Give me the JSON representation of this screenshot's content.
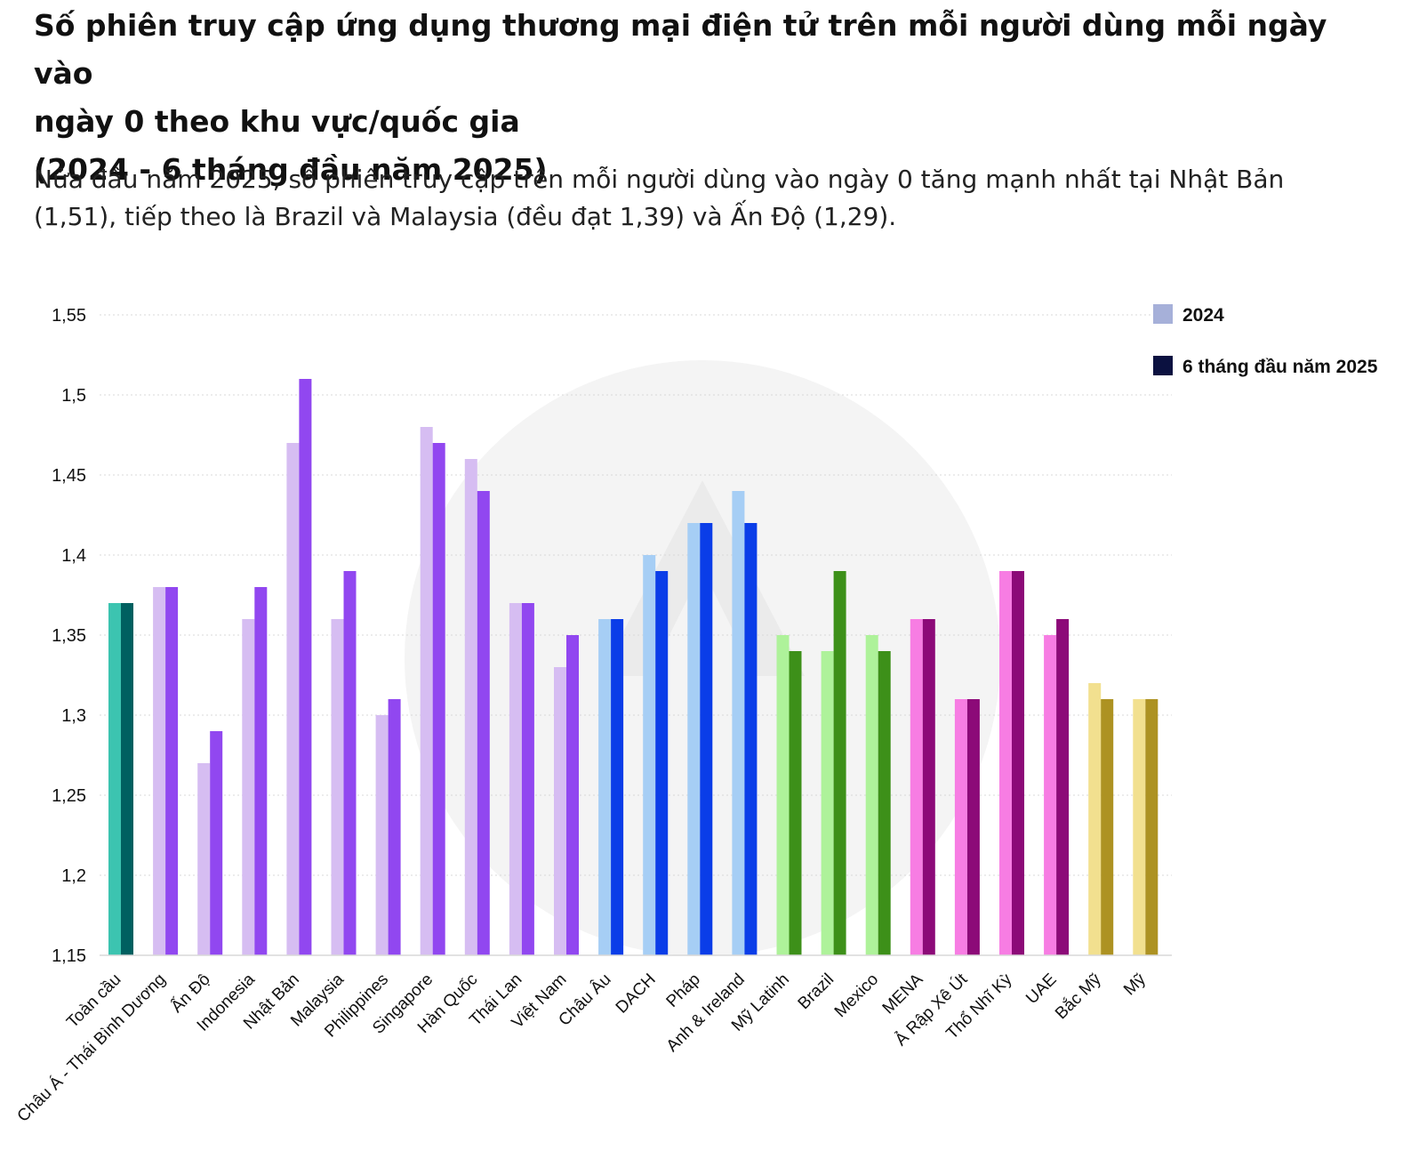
{
  "title_lines": [
    "Số phiên truy cập ứng dụng thương mại điện tử trên mỗi người dùng mỗi ngày vào",
    "ngày 0 theo khu vực/quốc gia",
    "(2024 - 6 tháng đầu năm 2025)"
  ],
  "subtitle_lines": [
    "Nửa đầu năm 2025, số phiên truy cập trên mỗi người dùng vào ngày 0 tăng mạnh nhất tại Nhật Bản",
    "(1,51), tiếp theo là Brazil và Malaysia (đều đạt 1,39) và Ấn Độ (1,29)."
  ],
  "legend": {
    "items": [
      {
        "label": "2024",
        "color": "#a6b0d9"
      },
      {
        "label": "6 tháng đầu năm 2025",
        "color": "#0b1140"
      }
    ]
  },
  "chart_data": {
    "type": "bar",
    "title": "Số phiên truy cập ứng dụng thương mại điện tử trên mỗi người dùng mỗi ngày vào ngày 0 theo khu vực/quốc gia (2024 - 6 tháng đầu năm 2025)",
    "xlabel": "",
    "ylabel": "",
    "ylim": [
      1.15,
      1.55
    ],
    "yticks": [
      1.15,
      1.2,
      1.25,
      1.3,
      1.35,
      1.4,
      1.45,
      1.5,
      1.55
    ],
    "ytick_labels": [
      "1,15",
      "1,2",
      "1,25",
      "1,3",
      "1,35",
      "1,4",
      "1,45",
      "1,5",
      "1,55"
    ],
    "grid": true,
    "legend_position": "top-right",
    "categories": [
      "Toàn cầu",
      "Châu Á - Thái Bình Dương",
      "Ấn Độ",
      "Indonesia",
      "Nhật Bản",
      "Malaysia",
      "Philippines",
      "Singapore",
      "Hàn Quốc",
      "Thái Lan",
      "Việt Nam",
      "Châu Âu",
      "DACH",
      "Pháp",
      "Anh & Ireland",
      "Mỹ Latinh",
      "Brazil",
      "Mexico",
      "MENA",
      "Ả Rập Xê Út",
      "Thổ Nhĩ Kỳ",
      "UAE",
      "Bắc Mỹ",
      "Mỹ"
    ],
    "series": [
      {
        "name": "2024",
        "values": [
          1.37,
          1.38,
          1.27,
          1.36,
          1.47,
          1.36,
          1.3,
          1.48,
          1.46,
          1.37,
          1.33,
          1.36,
          1.4,
          1.42,
          1.44,
          1.35,
          1.34,
          1.35,
          1.36,
          1.31,
          1.39,
          1.35,
          1.32,
          1.31
        ]
      },
      {
        "name": "6 tháng đầu năm 2025",
        "values": [
          1.37,
          1.38,
          1.29,
          1.38,
          1.51,
          1.39,
          1.31,
          1.47,
          1.44,
          1.37,
          1.35,
          1.36,
          1.39,
          1.42,
          1.42,
          1.34,
          1.39,
          1.34,
          1.36,
          1.31,
          1.39,
          1.36,
          1.31,
          1.31
        ]
      }
    ],
    "category_colors": [
      [
        "#3cc4b0",
        "#006060"
      ],
      [
        "#d6bdf2",
        "#9147f0"
      ],
      [
        "#d6bdf2",
        "#9147f0"
      ],
      [
        "#d6bdf2",
        "#9147f0"
      ],
      [
        "#d6bdf2",
        "#9147f0"
      ],
      [
        "#d6bdf2",
        "#9147f0"
      ],
      [
        "#d6bdf2",
        "#9147f0"
      ],
      [
        "#d6bdf2",
        "#9147f0"
      ],
      [
        "#d6bdf2",
        "#9147f0"
      ],
      [
        "#d6bdf2",
        "#9147f0"
      ],
      [
        "#d6bdf2",
        "#9147f0"
      ],
      [
        "#a6cef5",
        "#0a3de8"
      ],
      [
        "#a6cef5",
        "#0a3de8"
      ],
      [
        "#a6cef5",
        "#0a3de8"
      ],
      [
        "#a6cef5",
        "#0a3de8"
      ],
      [
        "#aef29a",
        "#3d9019"
      ],
      [
        "#aef29a",
        "#3d9019"
      ],
      [
        "#aef29a",
        "#3d9019"
      ],
      [
        "#f77de3",
        "#8c0a78"
      ],
      [
        "#f77de3",
        "#8c0a78"
      ],
      [
        "#f77de3",
        "#8c0a78"
      ],
      [
        "#f77de3",
        "#8c0a78"
      ],
      [
        "#f2e08f",
        "#ad9222"
      ],
      [
        "#f2e08f",
        "#ad9222"
      ]
    ]
  }
}
